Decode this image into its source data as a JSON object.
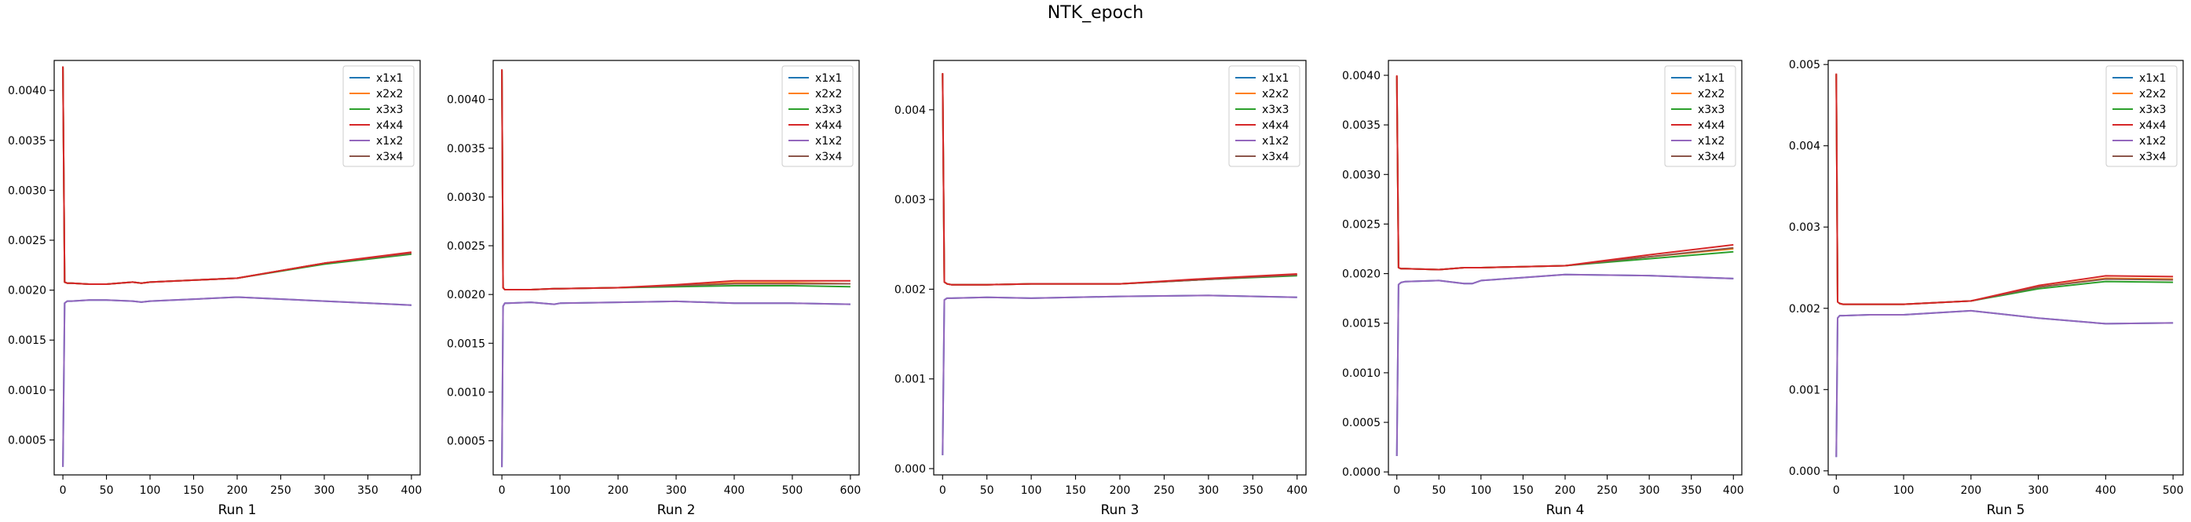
{
  "figure": {
    "title": "NTK_epoch"
  },
  "legend_labels": [
    "x1x1",
    "x2x2",
    "x3x3",
    "x4x4",
    "x1x2",
    "x3x4"
  ],
  "colors": {
    "x1x1": "#1f77b4",
    "x2x2": "#ff7f0e",
    "x3x3": "#2ca02c",
    "x4x4": "#d62728",
    "x1x2": "#9467bd",
    "x3x4": "#8c564b"
  },
  "chart_data": [
    {
      "type": "line",
      "xlabel": "Run 1",
      "xlim": [
        -10,
        410
      ],
      "ylim": [
        0.00015,
        0.0043
      ],
      "xticks": [
        0,
        50,
        100,
        150,
        200,
        250,
        300,
        350,
        400
      ],
      "yticks": [
        0.0005,
        0.001,
        0.0015,
        0.002,
        0.0025,
        0.003,
        0.0035,
        0.004
      ],
      "ytick_labels": [
        "0.0005",
        "0.0010",
        "0.0015",
        "0.0020",
        "0.0025",
        "0.0030",
        "0.0035",
        "0.0040"
      ],
      "legend": "top-right",
      "series": [
        {
          "name": "x1x1",
          "x": [
            0,
            2,
            5,
            10,
            30,
            50,
            80,
            90,
            100,
            150,
            200,
            300,
            400
          ],
          "y": [
            0.00023,
            0.00187,
            0.00189,
            0.00189,
            0.0019,
            0.0019,
            0.00189,
            0.00188,
            0.00189,
            0.00191,
            0.00193,
            0.00189,
            0.00185
          ]
        },
        {
          "name": "x2x2",
          "x": [
            0,
            2,
            5,
            10,
            30,
            50,
            80,
            90,
            100,
            150,
            200,
            300,
            400
          ],
          "y": [
            0.00423,
            0.00208,
            0.00207,
            0.00207,
            0.00206,
            0.00206,
            0.00208,
            0.00207,
            0.00208,
            0.0021,
            0.00212,
            0.00227,
            0.00237
          ]
        },
        {
          "name": "x3x3",
          "x": [
            0,
            2,
            5,
            10,
            30,
            50,
            80,
            90,
            100,
            150,
            200,
            300,
            400
          ],
          "y": [
            0.00423,
            0.00208,
            0.00207,
            0.00207,
            0.00206,
            0.00206,
            0.00208,
            0.00207,
            0.00208,
            0.0021,
            0.00212,
            0.00226,
            0.00236
          ]
        },
        {
          "name": "x4x4",
          "x": [
            0,
            2,
            5,
            10,
            30,
            50,
            80,
            90,
            100,
            150,
            200,
            300,
            400
          ],
          "y": [
            0.00424,
            0.00208,
            0.00207,
            0.00207,
            0.00206,
            0.00206,
            0.00208,
            0.00207,
            0.00208,
            0.0021,
            0.00212,
            0.00227,
            0.00238
          ]
        },
        {
          "name": "x1x2",
          "x": [
            0,
            2,
            5,
            10,
            30,
            50,
            80,
            90,
            100,
            150,
            200,
            300,
            400
          ],
          "y": [
            0.00023,
            0.00187,
            0.00189,
            0.00189,
            0.0019,
            0.0019,
            0.00189,
            0.00188,
            0.00189,
            0.00191,
            0.00193,
            0.00189,
            0.00185
          ]
        },
        {
          "name": "x3x4",
          "x": [
            0,
            2,
            5,
            10,
            30,
            50,
            80,
            90,
            100,
            150,
            200,
            300,
            400
          ],
          "y": [
            0.00424,
            0.00208,
            0.00207,
            0.00207,
            0.00206,
            0.00206,
            0.00208,
            0.00207,
            0.00208,
            0.0021,
            0.00212,
            0.00227,
            0.00237
          ]
        }
      ]
    },
    {
      "type": "line",
      "xlabel": "Run 2",
      "xlim": [
        -15,
        615
      ],
      "ylim": [
        0.00015,
        0.0044
      ],
      "xticks": [
        0,
        100,
        200,
        300,
        400,
        500,
        600
      ],
      "yticks": [
        0.0005,
        0.001,
        0.0015,
        0.002,
        0.0025,
        0.003,
        0.0035,
        0.004
      ],
      "ytick_labels": [
        "0.0005",
        "0.0010",
        "0.0015",
        "0.0020",
        "0.0025",
        "0.0030",
        "0.0035",
        "0.0040"
      ],
      "legend": "top-right",
      "series": [
        {
          "name": "x1x1",
          "x": [
            0,
            2,
            5,
            10,
            50,
            90,
            100,
            200,
            300,
            400,
            500,
            600
          ],
          "y": [
            0.00023,
            0.00188,
            0.00191,
            0.00191,
            0.00192,
            0.0019,
            0.00191,
            0.00192,
            0.00193,
            0.00191,
            0.00191,
            0.0019
          ]
        },
        {
          "name": "x2x2",
          "x": [
            0,
            2,
            5,
            10,
            50,
            90,
            100,
            200,
            300,
            400,
            500,
            600
          ],
          "y": [
            0.0043,
            0.00207,
            0.00205,
            0.00205,
            0.00205,
            0.00206,
            0.00206,
            0.00207,
            0.00209,
            0.00212,
            0.00212,
            0.00211
          ]
        },
        {
          "name": "x3x3",
          "x": [
            0,
            2,
            5,
            10,
            50,
            90,
            100,
            200,
            300,
            400,
            500,
            600
          ],
          "y": [
            0.0043,
            0.00207,
            0.00205,
            0.00205,
            0.00205,
            0.00206,
            0.00206,
            0.00207,
            0.00208,
            0.00209,
            0.00209,
            0.00208
          ]
        },
        {
          "name": "x4x4",
          "x": [
            0,
            2,
            5,
            10,
            50,
            90,
            100,
            200,
            300,
            400,
            500,
            600
          ],
          "y": [
            0.00431,
            0.00207,
            0.00205,
            0.00205,
            0.00205,
            0.00206,
            0.00206,
            0.00207,
            0.0021,
            0.00214,
            0.00214,
            0.00214
          ]
        },
        {
          "name": "x1x2",
          "x": [
            0,
            2,
            5,
            10,
            50,
            90,
            100,
            200,
            300,
            400,
            500,
            600
          ],
          "y": [
            0.00023,
            0.00188,
            0.00191,
            0.00191,
            0.00192,
            0.0019,
            0.00191,
            0.00192,
            0.00193,
            0.00191,
            0.00191,
            0.0019
          ]
        },
        {
          "name": "x3x4",
          "x": [
            0,
            2,
            5,
            10,
            50,
            90,
            100,
            200,
            300,
            400,
            500,
            600
          ],
          "y": [
            0.0043,
            0.00207,
            0.00205,
            0.00205,
            0.00205,
            0.00206,
            0.00206,
            0.00207,
            0.00209,
            0.00211,
            0.00211,
            0.00211
          ]
        }
      ]
    },
    {
      "type": "line",
      "xlabel": "Run 3",
      "xlim": [
        -10,
        410
      ],
      "ylim": [
        -7e-05,
        0.00455
      ],
      "xticks": [
        0,
        50,
        100,
        150,
        200,
        250,
        300,
        350,
        400
      ],
      "yticks": [
        0.0,
        0.001,
        0.002,
        0.003,
        0.004
      ],
      "ytick_labels": [
        "0.000",
        "0.001",
        "0.002",
        "0.003",
        "0.004"
      ],
      "legend": "top-right",
      "series": [
        {
          "name": "x1x1",
          "x": [
            0,
            2,
            5,
            10,
            50,
            100,
            200,
            300,
            400
          ],
          "y": [
            0.00015,
            0.00188,
            0.0019,
            0.0019,
            0.00191,
            0.0019,
            0.00192,
            0.00193,
            0.00191
          ]
        },
        {
          "name": "x2x2",
          "x": [
            0,
            2,
            5,
            10,
            50,
            100,
            200,
            300,
            400
          ],
          "y": [
            0.0044,
            0.00208,
            0.00206,
            0.00205,
            0.00205,
            0.00206,
            0.00206,
            0.00211,
            0.00216
          ]
        },
        {
          "name": "x3x3",
          "x": [
            0,
            2,
            5,
            10,
            50,
            100,
            200,
            300,
            400
          ],
          "y": [
            0.0044,
            0.00208,
            0.00206,
            0.00205,
            0.00205,
            0.00206,
            0.00206,
            0.00211,
            0.00215
          ]
        },
        {
          "name": "x4x4",
          "x": [
            0,
            2,
            5,
            10,
            50,
            100,
            200,
            300,
            400
          ],
          "y": [
            0.00441,
            0.00208,
            0.00206,
            0.00205,
            0.00205,
            0.00206,
            0.00206,
            0.00212,
            0.00217
          ]
        },
        {
          "name": "x1x2",
          "x": [
            0,
            2,
            5,
            10,
            50,
            100,
            200,
            300,
            400
          ],
          "y": [
            0.00015,
            0.00188,
            0.0019,
            0.0019,
            0.00191,
            0.0019,
            0.00192,
            0.00193,
            0.00191
          ]
        },
        {
          "name": "x3x4",
          "x": [
            0,
            2,
            5,
            10,
            50,
            100,
            200,
            300,
            400
          ],
          "y": [
            0.0044,
            0.00208,
            0.00206,
            0.00205,
            0.00205,
            0.00206,
            0.00206,
            0.00211,
            0.00216
          ]
        }
      ]
    },
    {
      "type": "line",
      "xlabel": "Run 4",
      "xlim": [
        -10,
        410
      ],
      "ylim": [
        -3e-05,
        0.00415
      ],
      "xticks": [
        0,
        50,
        100,
        150,
        200,
        250,
        300,
        350,
        400
      ],
      "yticks": [
        0.0,
        0.0005,
        0.001,
        0.0015,
        0.002,
        0.0025,
        0.003,
        0.0035,
        0.004
      ],
      "ytick_labels": [
        "0.0000",
        "0.0005",
        "0.0010",
        "0.0015",
        "0.0020",
        "0.0025",
        "0.0030",
        "0.0035",
        "0.0040"
      ],
      "legend": "top-right",
      "series": [
        {
          "name": "x1x1",
          "x": [
            0,
            2,
            5,
            10,
            50,
            80,
            90,
            100,
            150,
            200,
            300,
            400
          ],
          "y": [
            0.00016,
            0.00189,
            0.00191,
            0.00192,
            0.00193,
            0.0019,
            0.0019,
            0.00193,
            0.00196,
            0.00199,
            0.00198,
            0.00195
          ]
        },
        {
          "name": "x2x2",
          "x": [
            0,
            2,
            5,
            10,
            50,
            80,
            90,
            100,
            150,
            200,
            300,
            400
          ],
          "y": [
            0.00399,
            0.00206,
            0.00205,
            0.00205,
            0.00204,
            0.00206,
            0.00206,
            0.00206,
            0.00207,
            0.00208,
            0.00217,
            0.00225
          ]
        },
        {
          "name": "x3x3",
          "x": [
            0,
            2,
            5,
            10,
            50,
            80,
            90,
            100,
            150,
            200,
            300,
            400
          ],
          "y": [
            0.00399,
            0.00206,
            0.00205,
            0.00205,
            0.00204,
            0.00206,
            0.00206,
            0.00206,
            0.00207,
            0.00208,
            0.00215,
            0.00222
          ]
        },
        {
          "name": "x4x4",
          "x": [
            0,
            2,
            5,
            10,
            50,
            80,
            90,
            100,
            150,
            200,
            300,
            400
          ],
          "y": [
            0.004,
            0.00206,
            0.00205,
            0.00205,
            0.00204,
            0.00206,
            0.00206,
            0.00206,
            0.00207,
            0.00208,
            0.00219,
            0.00229
          ]
        },
        {
          "name": "x1x2",
          "x": [
            0,
            2,
            5,
            10,
            50,
            80,
            90,
            100,
            150,
            200,
            300,
            400
          ],
          "y": [
            0.00016,
            0.00189,
            0.00191,
            0.00192,
            0.00193,
            0.0019,
            0.0019,
            0.00193,
            0.00196,
            0.00199,
            0.00198,
            0.00195
          ]
        },
        {
          "name": "x3x4",
          "x": [
            0,
            2,
            5,
            10,
            50,
            80,
            90,
            100,
            150,
            200,
            300,
            400
          ],
          "y": [
            0.00399,
            0.00206,
            0.00205,
            0.00205,
            0.00204,
            0.00206,
            0.00206,
            0.00206,
            0.00207,
            0.00208,
            0.00217,
            0.00226
          ]
        }
      ]
    },
    {
      "type": "line",
      "xlabel": "Run 5",
      "xlim": [
        -12,
        515
      ],
      "ylim": [
        -5e-05,
        0.00505
      ],
      "xticks": [
        0,
        100,
        200,
        300,
        400,
        500
      ],
      "yticks": [
        0.0,
        0.001,
        0.002,
        0.003,
        0.004,
        0.005
      ],
      "ytick_labels": [
        "0.000",
        "0.001",
        "0.002",
        "0.003",
        "0.004",
        "0.005"
      ],
      "legend": "top-right",
      "series": [
        {
          "name": "x1x1",
          "x": [
            0,
            2,
            5,
            10,
            50,
            100,
            200,
            300,
            400,
            500
          ],
          "y": [
            0.00017,
            0.00188,
            0.00191,
            0.00191,
            0.00192,
            0.00192,
            0.00197,
            0.00188,
            0.00181,
            0.00182
          ]
        },
        {
          "name": "x2x2",
          "x": [
            0,
            2,
            5,
            10,
            50,
            100,
            200,
            300,
            400,
            500
          ],
          "y": [
            0.00488,
            0.00208,
            0.00206,
            0.00205,
            0.00205,
            0.00205,
            0.00209,
            0.00226,
            0.00237,
            0.00236
          ]
        },
        {
          "name": "x3x3",
          "x": [
            0,
            2,
            5,
            10,
            50,
            100,
            200,
            300,
            400,
            500
          ],
          "y": [
            0.00488,
            0.00208,
            0.00206,
            0.00205,
            0.00205,
            0.00205,
            0.00209,
            0.00224,
            0.00233,
            0.00232
          ]
        },
        {
          "name": "x4x4",
          "x": [
            0,
            2,
            5,
            10,
            50,
            100,
            200,
            300,
            400,
            500
          ],
          "y": [
            0.00489,
            0.00208,
            0.00206,
            0.00205,
            0.00205,
            0.00205,
            0.00209,
            0.00228,
            0.0024,
            0.00239
          ]
        },
        {
          "name": "x1x2",
          "x": [
            0,
            2,
            5,
            10,
            50,
            100,
            200,
            300,
            400,
            500
          ],
          "y": [
            0.00017,
            0.00188,
            0.00191,
            0.00191,
            0.00192,
            0.00192,
            0.00197,
            0.00188,
            0.00181,
            0.00182
          ]
        },
        {
          "name": "x3x4",
          "x": [
            0,
            2,
            5,
            10,
            50,
            100,
            200,
            300,
            400,
            500
          ],
          "y": [
            0.00488,
            0.00208,
            0.00206,
            0.00205,
            0.00205,
            0.00205,
            0.00209,
            0.00226,
            0.00236,
            0.00235
          ]
        }
      ]
    }
  ]
}
